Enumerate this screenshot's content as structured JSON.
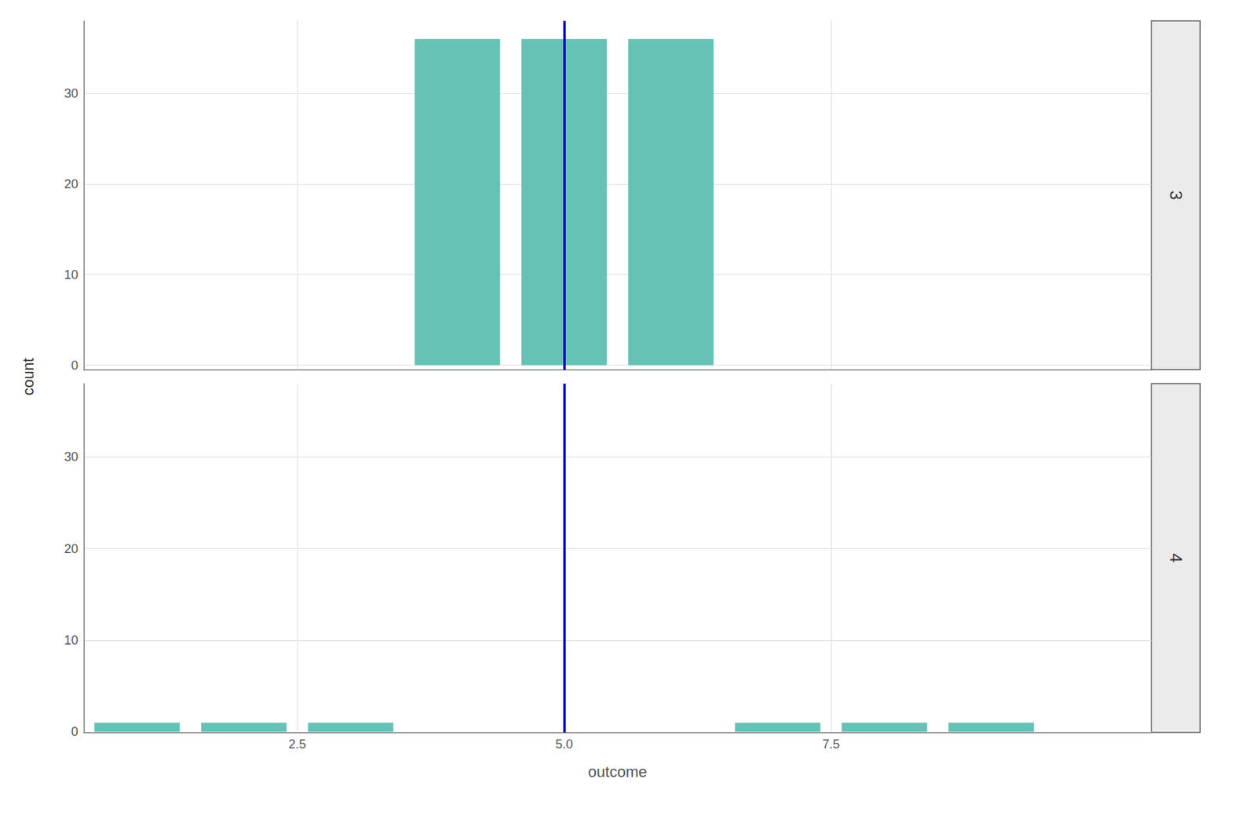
{
  "chart_data": [
    {
      "type": "bar",
      "title": "3",
      "x": [
        4,
        5,
        6
      ],
      "values": [
        36,
        36,
        36
      ],
      "color": "#66c2b5",
      "mean": 5.0,
      "mean_color": "#0000cc",
      "strip_color": "#ebebeb",
      "xlim": [
        0.5,
        10.5
      ],
      "xticks": [
        2.5,
        {
          "value": 5.0,
          "label": "5.0"
        },
        7.5
      ],
      "ylim": [
        -0.5,
        38
      ],
      "yticks": [
        0,
        10,
        20,
        30
      ],
      "ylabel": "count",
      "grid": true,
      "tick_labels": "y"
    },
    {
      "type": "bar",
      "title": "4",
      "x": [
        1,
        2,
        3,
        7,
        8,
        9
      ],
      "values": [
        1,
        1,
        1,
        1,
        1,
        1
      ],
      "color": "#66c2b5",
      "mean": 5.0,
      "mean_color": "#0000cc",
      "strip_color": "#ebebeb",
      "xlim": [
        0.5,
        10.5
      ],
      "xticks": [
        2.5,
        {
          "value": 5.0,
          "label": "5.0"
        },
        7.5
      ],
      "ylim": [
        -0.05,
        38
      ],
      "yticks": [
        0,
        10,
        20,
        30
      ],
      "xlabel": "outcome",
      "grid": true
    }
  ]
}
